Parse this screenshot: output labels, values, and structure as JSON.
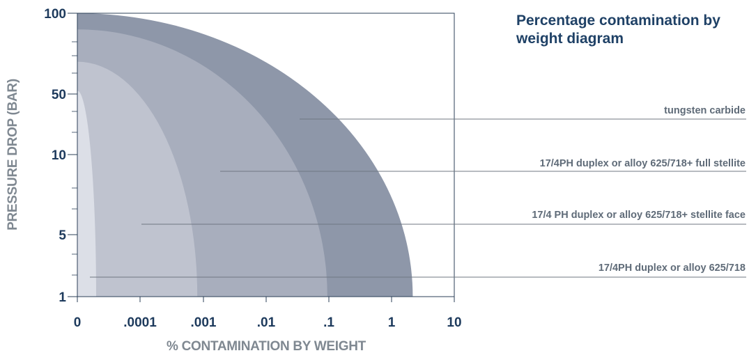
{
  "chart_data": {
    "type": "area",
    "title": "Percentage contamination by weight diagram",
    "xlabel": "% CONTAMINATION BY WEIGHT",
    "ylabel": "PRESSURE DROP (BAR)",
    "x_tick_labels": [
      "0",
      ".0001",
      ".001",
      ".01",
      ".1",
      "1",
      "10"
    ],
    "y_tick_labels": [
      "100",
      "50",
      "10",
      "5",
      "1"
    ],
    "xlim": [
      "0",
      "10"
    ],
    "ylim": [
      1,
      100
    ],
    "grid": false,
    "legend": "none",
    "series": [
      {
        "name": "tungsten carbide",
        "color": "#8e97a9",
        "max_contamination": 2,
        "max_pressure_drop": 100
      },
      {
        "name": "17/4PH duplex or alloy 625/718+ full stellite",
        "color": "#a8aebd",
        "max_contamination": 0.09,
        "max_pressure_drop": 90
      },
      {
        "name": "17/4 PH duplex or alloy 625/718+ stellite face",
        "color": "#bfc3cf",
        "max_contamination": 0.0008,
        "max_pressure_drop": 70
      },
      {
        "name": "17/4PH duplex or alloy 625/718",
        "color": "#dcdfe7",
        "max_contamination": 3e-05,
        "max_pressure_drop": 52
      }
    ]
  }
}
